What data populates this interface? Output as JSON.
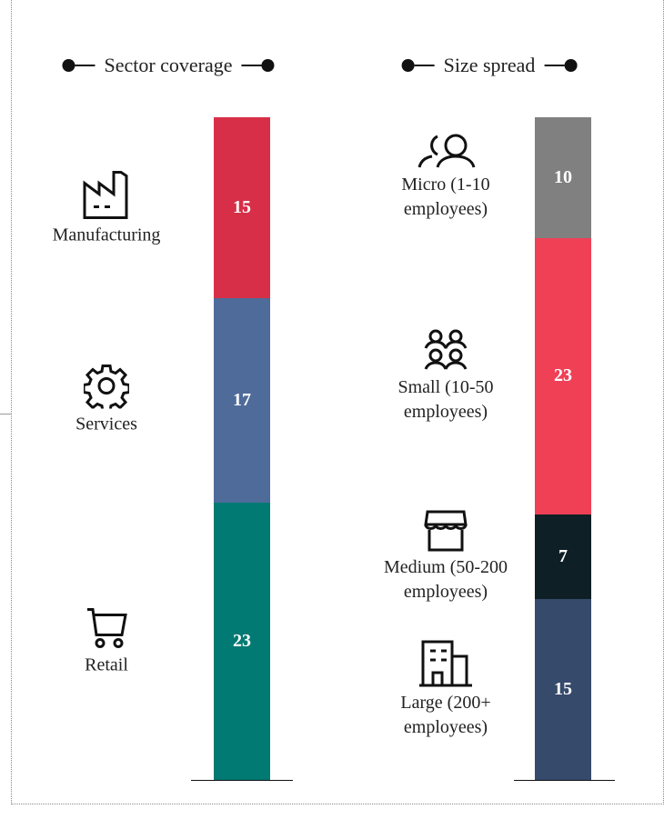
{
  "chart_data": [
    {
      "type": "stacked_bar",
      "title": "Sector coverage",
      "categories": [
        "Manufacturing",
        "Services",
        "Retail"
      ],
      "values": [
        15,
        17,
        23
      ],
      "colors": [
        "#d62f47",
        "#4e6b9a",
        "#007a72"
      ]
    },
    {
      "type": "stacked_bar",
      "title": "Size spread",
      "categories": [
        "Micro (1-10 employees)",
        "Small (10-50 employees)",
        "Medium (50-200 employees)",
        "Large (200+ employees)"
      ],
      "values": [
        10,
        23,
        7,
        15
      ],
      "colors": [
        "#808080",
        "#ef4056",
        "#0f1f26",
        "#364a6b"
      ]
    }
  ]
}
